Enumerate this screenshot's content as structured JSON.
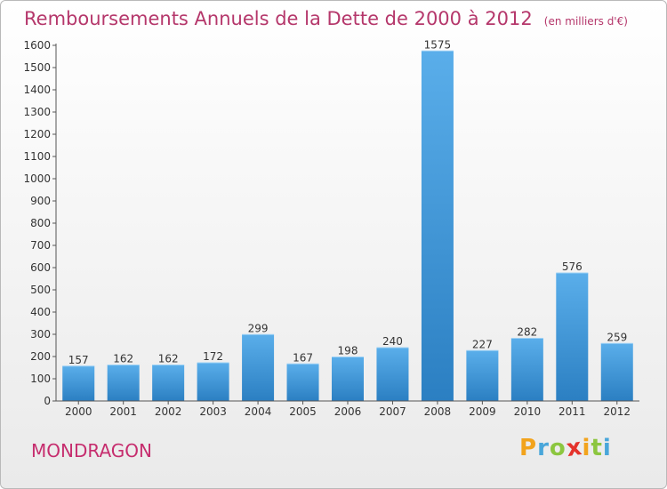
{
  "header": {
    "title": "Remboursements Annuels de la Dette de 2000 à 2012",
    "unit": "(en milliers d'€)"
  },
  "footer": {
    "commune": "MONDRAGON",
    "logo": "Proxiti"
  },
  "colors": {
    "title": "#b5376b",
    "bar_light": "#5aaeea",
    "bar_dark": "#2b7fc2",
    "logo_letters": [
      "#f2a31c",
      "#49a6da",
      "#8cc63f",
      "#e4322b",
      "#f2a31c",
      "#8cc63f",
      "#49a6da"
    ]
  },
  "chart_data": {
    "type": "bar",
    "categories": [
      "2000",
      "2001",
      "2002",
      "2003",
      "2004",
      "2005",
      "2006",
      "2007",
      "2008",
      "2009",
      "2010",
      "2011",
      "2012"
    ],
    "values": [
      157,
      162,
      162,
      172,
      299,
      167,
      198,
      240,
      1575,
      227,
      282,
      576,
      259
    ],
    "ylim": [
      0,
      1600
    ],
    "yticks": [
      0,
      100,
      200,
      300,
      400,
      500,
      600,
      700,
      800,
      900,
      1000,
      1100,
      1200,
      1300,
      1400,
      1500,
      1600
    ],
    "grid": false,
    "data_labels": true
  }
}
